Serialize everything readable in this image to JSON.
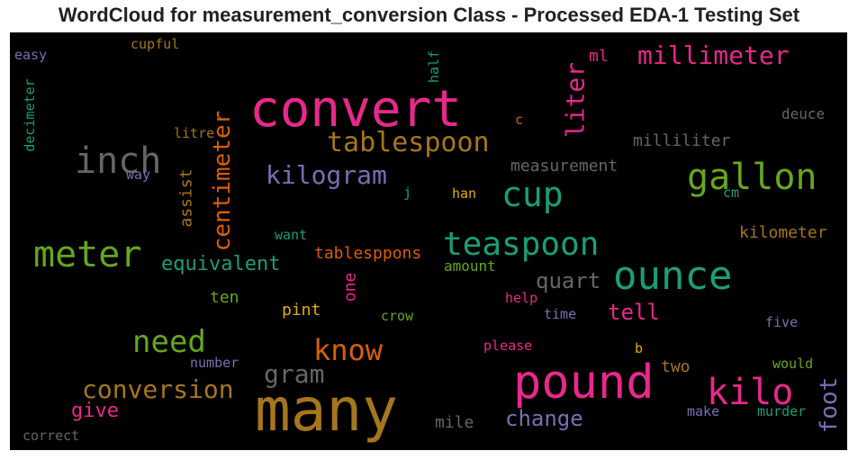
{
  "chart_data": {
    "type": "wordcloud",
    "title": "WordCloud for measurement_conversion Class - Processed EDA-1 Testing Set",
    "background": "#000000",
    "palette": "Dark2",
    "words": [
      {
        "text": "convert",
        "color": "#e7298a"
      },
      {
        "text": "many",
        "color": "#a6761d"
      },
      {
        "text": "pound",
        "color": "#e7298a"
      },
      {
        "text": "ounce",
        "color": "#1b9e77"
      },
      {
        "text": "meter",
        "color": "#66a61e"
      },
      {
        "text": "inch",
        "color": "#666666"
      },
      {
        "text": "gallon",
        "color": "#66a61e"
      },
      {
        "text": "kilo",
        "color": "#e7298a"
      },
      {
        "text": "cup",
        "color": "#1b9e77"
      },
      {
        "text": "teaspoon",
        "color": "#1b9e77"
      },
      {
        "text": "tablespoon",
        "color": "#a6761d"
      },
      {
        "text": "know",
        "color": "#d95f02"
      },
      {
        "text": "need",
        "color": "#66a61e"
      },
      {
        "text": "millimeter",
        "color": "#e7298a"
      },
      {
        "text": "conversion",
        "color": "#a6761d"
      },
      {
        "text": "kilogram",
        "color": "#7570b3"
      },
      {
        "text": "centimeter",
        "color": "#d95f02"
      },
      {
        "text": "liter",
        "color": "#e7298a"
      },
      {
        "text": "foot",
        "color": "#7570b3"
      },
      {
        "text": "gram",
        "color": "#666666"
      },
      {
        "text": "change",
        "color": "#7570b3"
      },
      {
        "text": "equivalent",
        "color": "#1b9e77"
      },
      {
        "text": "tell",
        "color": "#e7298a"
      },
      {
        "text": "quart",
        "color": "#666666"
      },
      {
        "text": "give",
        "color": "#e7298a"
      },
      {
        "text": "milliliter",
        "color": "#666666"
      },
      {
        "text": "measurement",
        "color": "#666666"
      },
      {
        "text": "tablesppons",
        "color": "#d95f02"
      },
      {
        "text": "kilometer",
        "color": "#a6761d"
      },
      {
        "text": "assist",
        "color": "#a6761d"
      },
      {
        "text": "amount",
        "color": "#66a61e"
      },
      {
        "text": "ml",
        "color": "#e7298a"
      },
      {
        "text": "pint",
        "color": "#e6ab02"
      },
      {
        "text": "ten",
        "color": "#66a61e"
      },
      {
        "text": "one",
        "color": "#e7298a"
      },
      {
        "text": "two",
        "color": "#a6761d"
      },
      {
        "text": "mile",
        "color": "#666666"
      },
      {
        "text": "deuce",
        "color": "#666666"
      },
      {
        "text": "litre",
        "color": "#a6761d"
      },
      {
        "text": "way",
        "color": "#7570b3"
      },
      {
        "text": "easy",
        "color": "#7570b3"
      },
      {
        "text": "cupful",
        "color": "#a6761d"
      },
      {
        "text": "half",
        "color": "#1b9e77"
      },
      {
        "text": "decimeter",
        "color": "#1b9e77"
      },
      {
        "text": "c",
        "color": "#d95f02"
      },
      {
        "text": "j",
        "color": "#1b9e77"
      },
      {
        "text": "han",
        "color": "#e6ab02"
      },
      {
        "text": "cm",
        "color": "#1b9e77"
      },
      {
        "text": "want",
        "color": "#1b9e77"
      },
      {
        "text": "help",
        "color": "#e7298a"
      },
      {
        "text": "time",
        "color": "#7570b3"
      },
      {
        "text": "crow",
        "color": "#66a61e"
      },
      {
        "text": "five",
        "color": "#7570b3"
      },
      {
        "text": "please",
        "color": "#e7298a"
      },
      {
        "text": "b",
        "color": "#e6ab02"
      },
      {
        "text": "would",
        "color": "#66a61e"
      },
      {
        "text": "number",
        "color": "#7570b3"
      },
      {
        "text": "make",
        "color": "#7570b3"
      },
      {
        "text": "murder",
        "color": "#1b9e77"
      },
      {
        "text": "correct",
        "color": "#666666"
      }
    ]
  }
}
